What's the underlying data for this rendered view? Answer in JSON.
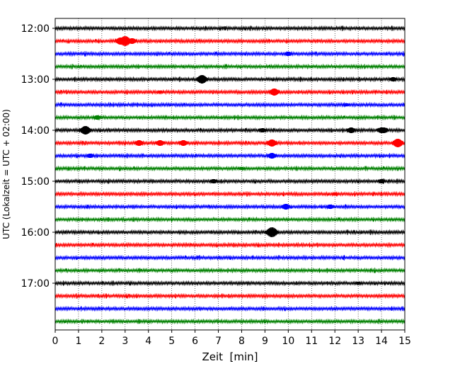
{
  "chart_data": {
    "type": "line",
    "title": "",
    "xlabel": "Zeit  [min]",
    "ylabel": "UTC (Lokalzeit = UTC + 02:00)",
    "xlim": [
      0,
      15
    ],
    "x_ticks": [
      "0",
      "1",
      "2",
      "3",
      "4",
      "5",
      "6",
      "7",
      "8",
      "9",
      "10",
      "11",
      "12",
      "13",
      "14",
      "15"
    ],
    "y_tick_labels": [
      "12:00",
      "13:00",
      "14:00",
      "15:00",
      "16:00",
      "17:00"
    ],
    "grid": "vertical dotted lines at each minute",
    "legend": "none",
    "colors_cycle": [
      "#000000",
      "#ff0000",
      "#0000ff",
      "#008000"
    ],
    "traces": [
      {
        "time": "12:00",
        "color": "#000000",
        "events": []
      },
      {
        "time": "12:15",
        "color": "#ff0000",
        "events": [
          {
            "x": 3.0,
            "amplitude": 7
          },
          {
            "x": 2.8,
            "amplitude": 5
          },
          {
            "x": 3.3,
            "amplitude": 4
          }
        ]
      },
      {
        "time": "12:30",
        "color": "#0000ff",
        "events": [
          {
            "x": 10.0,
            "amplitude": 3
          }
        ]
      },
      {
        "time": "12:45",
        "color": "#008000",
        "events": []
      },
      {
        "time": "13:00",
        "color": "#000000",
        "events": [
          {
            "x": 6.3,
            "amplitude": 6
          },
          {
            "x": 14.5,
            "amplitude": 3
          }
        ]
      },
      {
        "time": "13:15",
        "color": "#ff0000",
        "events": [
          {
            "x": 9.4,
            "amplitude": 5
          },
          {
            "x": 4.5,
            "amplitude": 2
          }
        ]
      },
      {
        "time": "13:30",
        "color": "#0000ff",
        "events": [
          {
            "x": 12.5,
            "amplitude": 2
          }
        ]
      },
      {
        "time": "13:45",
        "color": "#008000",
        "events": [
          {
            "x": 1.8,
            "amplitude": 3
          }
        ]
      },
      {
        "time": "14:00",
        "color": "#000000",
        "events": [
          {
            "x": 1.3,
            "amplitude": 6
          },
          {
            "x": 8.9,
            "amplitude": 3
          },
          {
            "x": 12.7,
            "amplitude": 4
          },
          {
            "x": 14.0,
            "amplitude": 4
          },
          {
            "x": 14.1,
            "amplitude": 4
          }
        ]
      },
      {
        "time": "14:15",
        "color": "#ff0000",
        "events": [
          {
            "x": 3.6,
            "amplitude": 4
          },
          {
            "x": 4.5,
            "amplitude": 4
          },
          {
            "x": 5.5,
            "amplitude": 4
          },
          {
            "x": 9.3,
            "amplitude": 5
          },
          {
            "x": 14.7,
            "amplitude": 6
          }
        ]
      },
      {
        "time": "14:30",
        "color": "#0000ff",
        "events": [
          {
            "x": 9.3,
            "amplitude": 4
          },
          {
            "x": 1.5,
            "amplitude": 3
          }
        ]
      },
      {
        "time": "14:45",
        "color": "#008000",
        "events": [
          {
            "x": 8.0,
            "amplitude": 2
          }
        ]
      },
      {
        "time": "15:00",
        "color": "#000000",
        "events": [
          {
            "x": 6.8,
            "amplitude": 3
          },
          {
            "x": 14.0,
            "amplitude": 3
          }
        ]
      },
      {
        "time": "15:15",
        "color": "#ff0000",
        "events": [
          {
            "x": 12.0,
            "amplitude": 2
          }
        ]
      },
      {
        "time": "15:30",
        "color": "#0000ff",
        "events": [
          {
            "x": 9.9,
            "amplitude": 4
          },
          {
            "x": 11.8,
            "amplitude": 3
          }
        ]
      },
      {
        "time": "15:45",
        "color": "#008000",
        "events": []
      },
      {
        "time": "16:00",
        "color": "#000000",
        "events": [
          {
            "x": 9.3,
            "amplitude": 7
          }
        ]
      },
      {
        "time": "16:15",
        "color": "#ff0000",
        "events": []
      },
      {
        "time": "16:30",
        "color": "#0000ff",
        "events": []
      },
      {
        "time": "16:45",
        "color": "#008000",
        "events": []
      },
      {
        "time": "17:00",
        "color": "#000000",
        "events": [
          {
            "x": 13.0,
            "amplitude": 2
          }
        ]
      },
      {
        "time": "17:15",
        "color": "#ff0000",
        "events": []
      },
      {
        "time": "17:30",
        "color": "#0000ff",
        "events": []
      },
      {
        "time": "17:45",
        "color": "#008000",
        "events": []
      }
    ]
  }
}
